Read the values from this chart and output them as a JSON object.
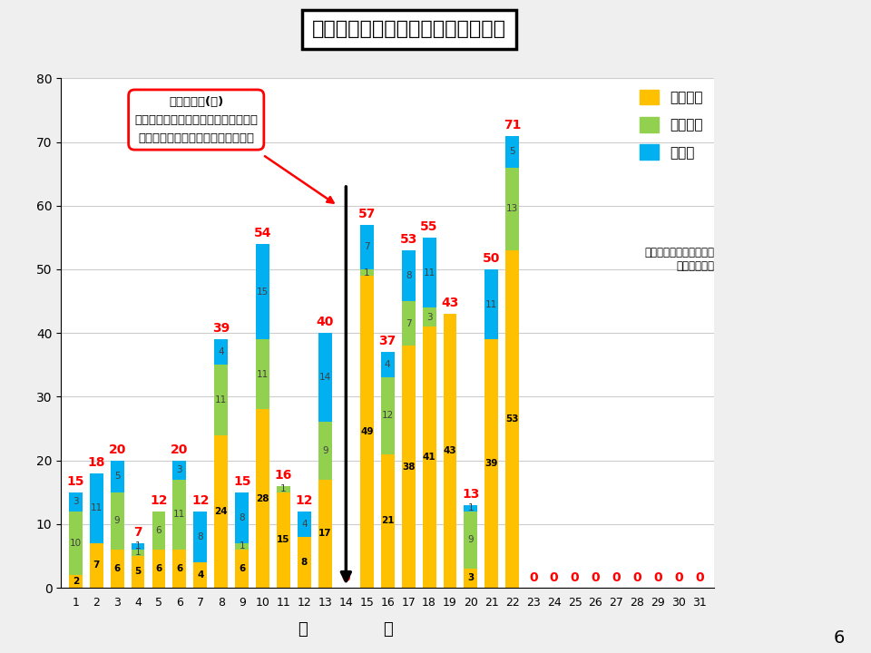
{
  "title": "本市におけるＰＣＲ検査の実施状況",
  "days": [
    1,
    2,
    3,
    4,
    5,
    6,
    7,
    8,
    9,
    10,
    11,
    12,
    13,
    14,
    15,
    16,
    17,
    18,
    19,
    20,
    21,
    22,
    23,
    24,
    25,
    26,
    27,
    28,
    29,
    30,
    31
  ],
  "shikensho": [
    2,
    7,
    6,
    5,
    6,
    6,
    4,
    24,
    6,
    28,
    15,
    8,
    17,
    0,
    49,
    21,
    38,
    41,
    43,
    3,
    39,
    53,
    0,
    0,
    0,
    0,
    0,
    0,
    0,
    0,
    0
  ],
  "minkan": [
    10,
    0,
    9,
    1,
    6,
    11,
    0,
    11,
    1,
    11,
    1,
    0,
    9,
    0,
    1,
    12,
    7,
    3,
    0,
    9,
    0,
    13,
    0,
    0,
    0,
    0,
    0,
    0,
    0,
    0,
    0
  ],
  "sonota": [
    3,
    11,
    5,
    1,
    0,
    3,
    8,
    4,
    8,
    15,
    0,
    4,
    14,
    0,
    7,
    4,
    8,
    11,
    0,
    1,
    11,
    5,
    0,
    0,
    0,
    0,
    0,
    0,
    0,
    0,
    0
  ],
  "totals": [
    15,
    18,
    20,
    7,
    12,
    20,
    12,
    39,
    15,
    54,
    16,
    12,
    40,
    0,
    57,
    37,
    53,
    55,
    43,
    13,
    50,
    71,
    0,
    0,
    0,
    0,
    0,
    0,
    0,
    0,
    0
  ],
  "color_shikensho": "#FFC000",
  "color_minkan": "#92D050",
  "color_sonota": "#00B0F0",
  "annotation_text": "７月１４日(火)\n当日の検査結果の判明基準を前日午前\n１１時～当日午前１１時までに変更",
  "legend_shikensho": "市保健所",
  "legend_minkan": "民間機関",
  "legend_sonota": "その他",
  "legend_sub": "（県保健研究センター、\n　院内検査）",
  "page_num": "6",
  "fig_bg": "#EFEFEF",
  "bar_width": 0.65
}
